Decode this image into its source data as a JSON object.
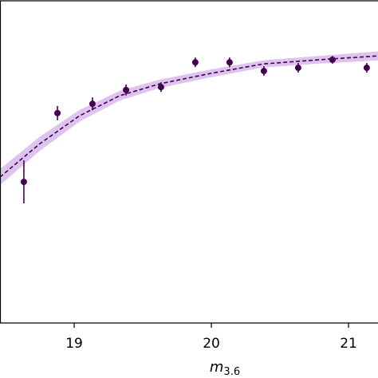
{
  "chart_data": {
    "type": "scatter",
    "xlabel": "m",
    "xlabel_subscript": "3.6",
    "xlim": [
      18.459,
      21.215
    ],
    "xticks": [
      19,
      20,
      21
    ],
    "ylim": [
      0,
      1
    ],
    "color": "#440154",
    "band_color": "#b98ae0",
    "x": [
      18.633,
      18.878,
      19.133,
      19.378,
      19.633,
      19.883,
      20.133,
      20.383,
      20.633,
      20.883,
      21.133
    ],
    "values": [
      0.439,
      0.653,
      0.682,
      0.725,
      0.734,
      0.811,
      0.811,
      0.784,
      0.794,
      0.819,
      0.794
    ],
    "errors": [
      0.067,
      0.022,
      0.02,
      0.017,
      0.015,
      0.015,
      0.015,
      0.015,
      0.015,
      0.012,
      0.015
    ],
    "fit": {
      "x": [
        18.459,
        18.75,
        19.04,
        19.331,
        19.622,
        20.0,
        20.378,
        20.784,
        21.215
      ],
      "values": [
        0.454,
        0.558,
        0.645,
        0.707,
        0.744,
        0.777,
        0.806,
        0.819,
        0.831
      ],
      "upper": [
        0.479,
        0.58,
        0.663,
        0.722,
        0.757,
        0.789,
        0.817,
        0.831,
        0.845
      ],
      "lower": [
        0.429,
        0.536,
        0.627,
        0.692,
        0.731,
        0.765,
        0.795,
        0.807,
        0.817
      ]
    }
  }
}
